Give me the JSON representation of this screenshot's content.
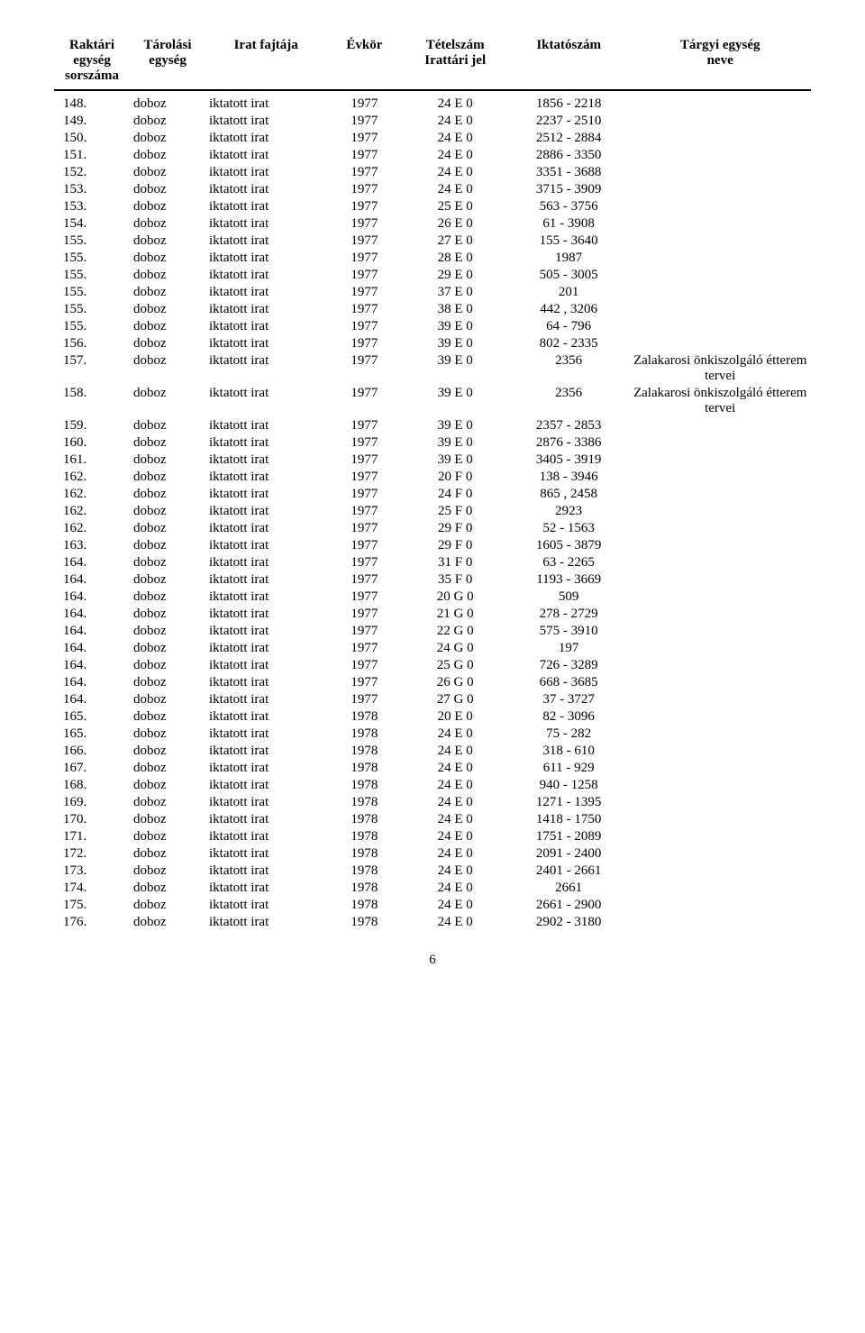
{
  "table": {
    "headers": {
      "sorszama": {
        "line1": "Raktári",
        "line2": "egység",
        "line3": "sorszáma"
      },
      "tarolasi": {
        "line1": "Tárolási",
        "line2": "egység"
      },
      "iratfajta": {
        "line1": "Irat fajtája"
      },
      "evkor": {
        "line1": "Évkör"
      },
      "tetelszam": {
        "line1": "Tételszám",
        "line2": "Irattári jel"
      },
      "iktatoszam": {
        "line1": "Iktatószám"
      },
      "targyi": {
        "line1": "Tárgyi egység",
        "line2": "neve"
      }
    },
    "rows": [
      {
        "sorszam": "148.",
        "tarolasi": "doboz",
        "irat": "iktatott irat",
        "ev": "1977",
        "tetel": "24 E 0",
        "iktato": "1856 - 2218",
        "targyi": ""
      },
      {
        "sorszam": "149.",
        "tarolasi": "doboz",
        "irat": "iktatott irat",
        "ev": "1977",
        "tetel": "24 E 0",
        "iktato": "2237 - 2510",
        "targyi": ""
      },
      {
        "sorszam": "150.",
        "tarolasi": "doboz",
        "irat": "iktatott irat",
        "ev": "1977",
        "tetel": "24 E 0",
        "iktato": "2512 - 2884",
        "targyi": ""
      },
      {
        "sorszam": "151.",
        "tarolasi": "doboz",
        "irat": "iktatott irat",
        "ev": "1977",
        "tetel": "24 E 0",
        "iktato": "2886 - 3350",
        "targyi": ""
      },
      {
        "sorszam": "152.",
        "tarolasi": "doboz",
        "irat": "iktatott irat",
        "ev": "1977",
        "tetel": "24 E 0",
        "iktato": "3351 - 3688",
        "targyi": ""
      },
      {
        "sorszam": "153.",
        "tarolasi": "doboz",
        "irat": "iktatott irat",
        "ev": "1977",
        "tetel": "24 E 0",
        "iktato": "3715 - 3909",
        "targyi": ""
      },
      {
        "sorszam": "153.",
        "tarolasi": "doboz",
        "irat": "iktatott irat",
        "ev": "1977",
        "tetel": "25 E 0",
        "iktato": "563 - 3756",
        "targyi": ""
      },
      {
        "sorszam": "154.",
        "tarolasi": "doboz",
        "irat": "iktatott irat",
        "ev": "1977",
        "tetel": "26 E 0",
        "iktato": "61 - 3908",
        "targyi": ""
      },
      {
        "sorszam": "155.",
        "tarolasi": "doboz",
        "irat": "iktatott irat",
        "ev": "1977",
        "tetel": "27 E 0",
        "iktato": "155 - 3640",
        "targyi": ""
      },
      {
        "sorszam": "155.",
        "tarolasi": "doboz",
        "irat": "iktatott irat",
        "ev": "1977",
        "tetel": "28 E 0",
        "iktato": "1987",
        "targyi": ""
      },
      {
        "sorszam": "155.",
        "tarolasi": "doboz",
        "irat": "iktatott irat",
        "ev": "1977",
        "tetel": "29 E 0",
        "iktato": "505 - 3005",
        "targyi": ""
      },
      {
        "sorszam": "155.",
        "tarolasi": "doboz",
        "irat": "iktatott irat",
        "ev": "1977",
        "tetel": "37 E 0",
        "iktato": "201",
        "targyi": ""
      },
      {
        "sorszam": "155.",
        "tarolasi": "doboz",
        "irat": "iktatott irat",
        "ev": "1977",
        "tetel": "38 E 0",
        "iktato": "442 , 3206",
        "targyi": ""
      },
      {
        "sorszam": "155.",
        "tarolasi": "doboz",
        "irat": "iktatott irat",
        "ev": "1977",
        "tetel": "39 E 0",
        "iktato": "64 - 796",
        "targyi": ""
      },
      {
        "sorszam": "156.",
        "tarolasi": "doboz",
        "irat": "iktatott irat",
        "ev": "1977",
        "tetel": "39 E 0",
        "iktato": "802 - 2335",
        "targyi": ""
      },
      {
        "sorszam": "157.",
        "tarolasi": "doboz",
        "irat": "iktatott irat",
        "ev": "1977",
        "tetel": "39 E 0",
        "iktato": "2356",
        "targyi": "Zalakarosi önkiszolgáló étterem tervei"
      },
      {
        "sorszam": "158.",
        "tarolasi": "doboz",
        "irat": "iktatott irat",
        "ev": "1977",
        "tetel": "39 E 0",
        "iktato": "2356",
        "targyi": "Zalakarosi önkiszolgáló étterem tervei"
      },
      {
        "sorszam": "159.",
        "tarolasi": "doboz",
        "irat": "iktatott irat",
        "ev": "1977",
        "tetel": "39 E 0",
        "iktato": "2357 - 2853",
        "targyi": ""
      },
      {
        "sorszam": "160.",
        "tarolasi": "doboz",
        "irat": "iktatott irat",
        "ev": "1977",
        "tetel": "39 E 0",
        "iktato": "2876 - 3386",
        "targyi": ""
      },
      {
        "sorszam": "161.",
        "tarolasi": "doboz",
        "irat": "iktatott irat",
        "ev": "1977",
        "tetel": "39 E 0",
        "iktato": "3405 - 3919",
        "targyi": ""
      },
      {
        "sorszam": "162.",
        "tarolasi": "doboz",
        "irat": "iktatott irat",
        "ev": "1977",
        "tetel": "20 F 0",
        "iktato": "138 - 3946",
        "targyi": ""
      },
      {
        "sorszam": "162.",
        "tarolasi": "doboz",
        "irat": "iktatott irat",
        "ev": "1977",
        "tetel": "24 F 0",
        "iktato": "865 , 2458",
        "targyi": ""
      },
      {
        "sorszam": "162.",
        "tarolasi": "doboz",
        "irat": "iktatott irat",
        "ev": "1977",
        "tetel": "25 F 0",
        "iktato": "2923",
        "targyi": ""
      },
      {
        "sorszam": "162.",
        "tarolasi": "doboz",
        "irat": "iktatott irat",
        "ev": "1977",
        "tetel": "29 F 0",
        "iktato": "52 - 1563",
        "targyi": ""
      },
      {
        "sorszam": "163.",
        "tarolasi": "doboz",
        "irat": "iktatott irat",
        "ev": "1977",
        "tetel": "29 F 0",
        "iktato": "1605 - 3879",
        "targyi": ""
      },
      {
        "sorszam": "164.",
        "tarolasi": "doboz",
        "irat": "iktatott irat",
        "ev": "1977",
        "tetel": "31 F 0",
        "iktato": "63 - 2265",
        "targyi": ""
      },
      {
        "sorszam": "164.",
        "tarolasi": "doboz",
        "irat": "iktatott irat",
        "ev": "1977",
        "tetel": "35 F 0",
        "iktato": "1193 - 3669",
        "targyi": ""
      },
      {
        "sorszam": "164.",
        "tarolasi": "doboz",
        "irat": "iktatott irat",
        "ev": "1977",
        "tetel": "20 G 0",
        "iktato": "509",
        "targyi": ""
      },
      {
        "sorszam": "164.",
        "tarolasi": "doboz",
        "irat": "iktatott irat",
        "ev": "1977",
        "tetel": "21 G 0",
        "iktato": "278 - 2729",
        "targyi": ""
      },
      {
        "sorszam": "164.",
        "tarolasi": "doboz",
        "irat": "iktatott irat",
        "ev": "1977",
        "tetel": "22 G 0",
        "iktato": "575 - 3910",
        "targyi": ""
      },
      {
        "sorszam": "164.",
        "tarolasi": "doboz",
        "irat": "iktatott irat",
        "ev": "1977",
        "tetel": "24 G 0",
        "iktato": "197",
        "targyi": ""
      },
      {
        "sorszam": "164.",
        "tarolasi": "doboz",
        "irat": "iktatott irat",
        "ev": "1977",
        "tetel": "25 G 0",
        "iktato": "726 - 3289",
        "targyi": ""
      },
      {
        "sorszam": "164.",
        "tarolasi": "doboz",
        "irat": "iktatott irat",
        "ev": "1977",
        "tetel": "26 G 0",
        "iktato": "668 - 3685",
        "targyi": ""
      },
      {
        "sorszam": "164.",
        "tarolasi": "doboz",
        "irat": "iktatott irat",
        "ev": "1977",
        "tetel": "27 G 0",
        "iktato": "37 - 3727",
        "targyi": ""
      },
      {
        "sorszam": "165.",
        "tarolasi": "doboz",
        "irat": "iktatott irat",
        "ev": "1978",
        "tetel": "20 E 0",
        "iktato": "82 - 3096",
        "targyi": ""
      },
      {
        "sorszam": "165.",
        "tarolasi": "doboz",
        "irat": "iktatott irat",
        "ev": "1978",
        "tetel": "24 E 0",
        "iktato": "75 - 282",
        "targyi": ""
      },
      {
        "sorszam": "166.",
        "tarolasi": "doboz",
        "irat": "iktatott irat",
        "ev": "1978",
        "tetel": "24 E 0",
        "iktato": "318 - 610",
        "targyi": ""
      },
      {
        "sorszam": "167.",
        "tarolasi": "doboz",
        "irat": "iktatott irat",
        "ev": "1978",
        "tetel": "24 E 0",
        "iktato": "611 - 929",
        "targyi": ""
      },
      {
        "sorszam": "168.",
        "tarolasi": "doboz",
        "irat": "iktatott irat",
        "ev": "1978",
        "tetel": "24 E 0",
        "iktato": "940 - 1258",
        "targyi": ""
      },
      {
        "sorszam": "169.",
        "tarolasi": "doboz",
        "irat": "iktatott irat",
        "ev": "1978",
        "tetel": "24 E 0",
        "iktato": "1271 - 1395",
        "targyi": ""
      },
      {
        "sorszam": "170.",
        "tarolasi": "doboz",
        "irat": "iktatott irat",
        "ev": "1978",
        "tetel": "24 E 0",
        "iktato": "1418 - 1750",
        "targyi": ""
      },
      {
        "sorszam": "171.",
        "tarolasi": "doboz",
        "irat": "iktatott irat",
        "ev": "1978",
        "tetel": "24 E 0",
        "iktato": "1751 - 2089",
        "targyi": ""
      },
      {
        "sorszam": "172.",
        "tarolasi": "doboz",
        "irat": "iktatott irat",
        "ev": "1978",
        "tetel": "24 E 0",
        "iktato": "2091 - 2400",
        "targyi": ""
      },
      {
        "sorszam": "173.",
        "tarolasi": "doboz",
        "irat": "iktatott irat",
        "ev": "1978",
        "tetel": "24 E 0",
        "iktato": "2401 - 2661",
        "targyi": ""
      },
      {
        "sorszam": "174.",
        "tarolasi": "doboz",
        "irat": "iktatott irat",
        "ev": "1978",
        "tetel": "24 E 0",
        "iktato": "2661",
        "targyi": ""
      },
      {
        "sorszam": "175.",
        "tarolasi": "doboz",
        "irat": "iktatott irat",
        "ev": "1978",
        "tetel": "24 E 0",
        "iktato": "2661 - 2900",
        "targyi": ""
      },
      {
        "sorszam": "176.",
        "tarolasi": "doboz",
        "irat": "iktatott irat",
        "ev": "1978",
        "tetel": "24 E 0",
        "iktato": "2902 - 3180",
        "targyi": ""
      }
    ]
  },
  "page_number": "6"
}
